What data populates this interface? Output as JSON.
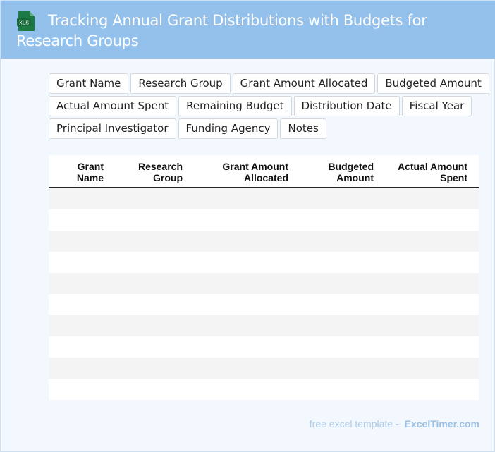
{
  "header": {
    "title": "Tracking Annual Grant Distributions with Budgets for Research Groups",
    "icon": "xls-file-icon",
    "icon_label": "XLS",
    "icon_color": "#1e7a45"
  },
  "fields": [
    [
      "Grant Name",
      "Research Group",
      "Grant Amount Allocated",
      "Budgeted Amount"
    ],
    [
      "Actual Amount Spent",
      "Remaining Budget",
      "Distribution Date",
      "Fiscal Year"
    ],
    [
      "Principal Investigator",
      "Funding Agency",
      "Notes"
    ]
  ],
  "table": {
    "columns": [
      {
        "line1": "Grant",
        "line2": "Name"
      },
      {
        "line1": "Research",
        "line2": "Group"
      },
      {
        "line1": "Grant Amount",
        "line2": "Allocated"
      },
      {
        "line1": "Budgeted",
        "line2": "Amount"
      },
      {
        "line1": "Actual Amount",
        "line2": "Spent"
      }
    ],
    "row_count": 10
  },
  "footer": {
    "text": "free excel template -",
    "brand": "ExcelTimer.com"
  }
}
